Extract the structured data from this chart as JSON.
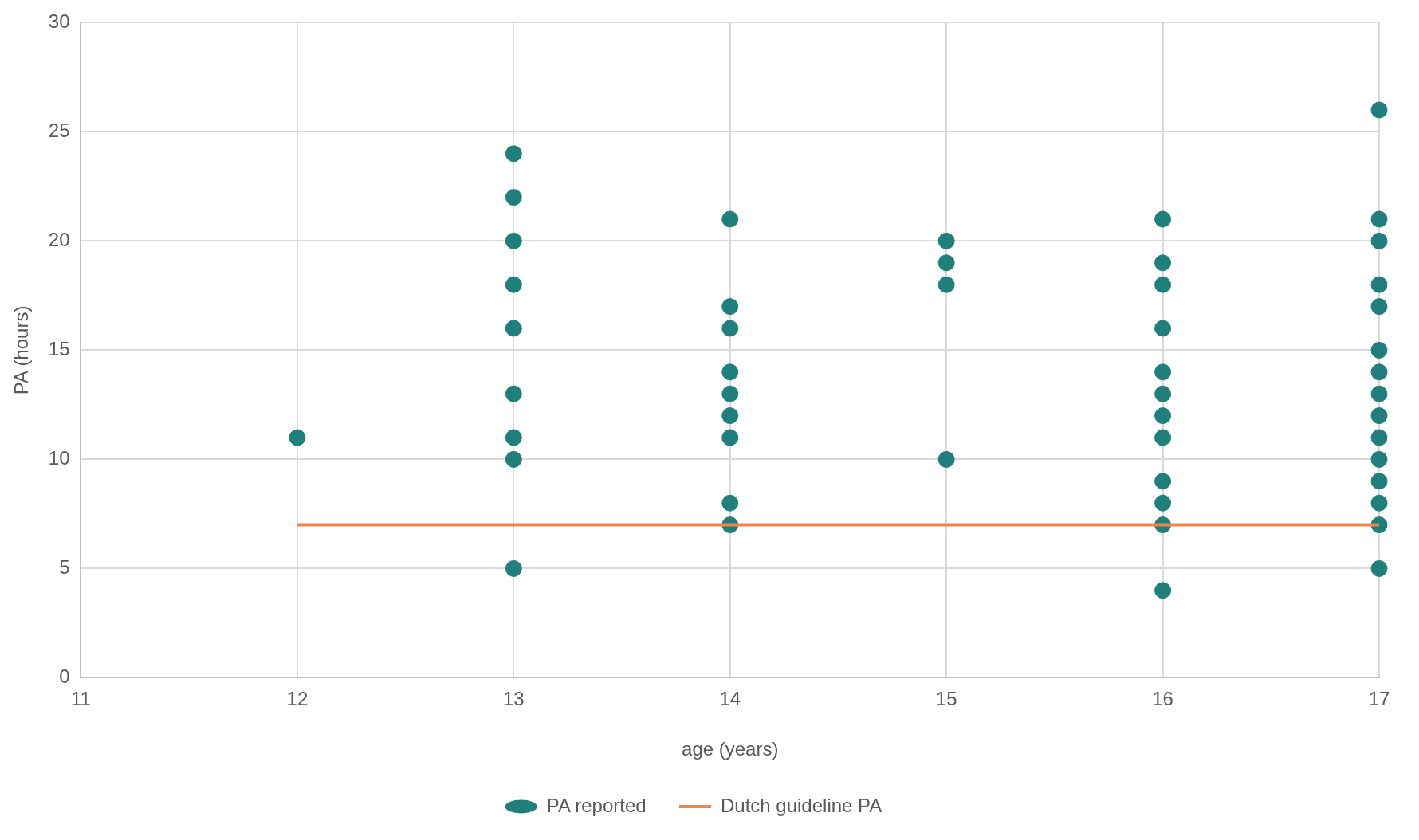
{
  "chart_data": {
    "type": "scatter",
    "xlabel": "age (years)",
    "ylabel": "PA (hours)",
    "xlim": [
      11,
      17
    ],
    "xticks": [
      11,
      12,
      13,
      14,
      15,
      16,
      17
    ],
    "ylim": [
      0,
      30
    ],
    "yticks": [
      0,
      5,
      10,
      15,
      20,
      25,
      30
    ],
    "grid": true,
    "legend": "bottom",
    "marker": "circle",
    "series": [
      {
        "name": "PA reported",
        "type": "scatter",
        "color": "#1f7f7b",
        "x": [
          12,
          13,
          13,
          13,
          13,
          13,
          13,
          13,
          13,
          13,
          14,
          14,
          14,
          14,
          14,
          14,
          14,
          14,
          14,
          15,
          15,
          15,
          15,
          16,
          16,
          16,
          16,
          16,
          16,
          16,
          16,
          16,
          16,
          16,
          16,
          17,
          17,
          17,
          17,
          17,
          17,
          17,
          17,
          17,
          17,
          17,
          17,
          17,
          17,
          17
        ],
        "values": [
          11,
          24,
          22,
          20,
          18,
          16,
          13,
          11,
          10,
          5,
          21,
          17,
          16,
          14,
          13,
          12,
          11,
          8,
          7,
          20,
          19,
          18,
          10,
          21,
          19,
          18,
          16,
          14,
          13,
          12,
          11,
          9,
          8,
          7,
          4,
          26,
          21,
          20,
          18,
          17,
          15,
          14,
          13,
          12,
          11,
          10,
          9,
          8,
          7,
          5
        ]
      },
      {
        "name": "Dutch guideline PA",
        "type": "line",
        "color": "#f0854a",
        "marker": "none",
        "line_style": "solid",
        "x": [
          12,
          17
        ],
        "values": [
          7,
          7
        ]
      }
    ]
  }
}
